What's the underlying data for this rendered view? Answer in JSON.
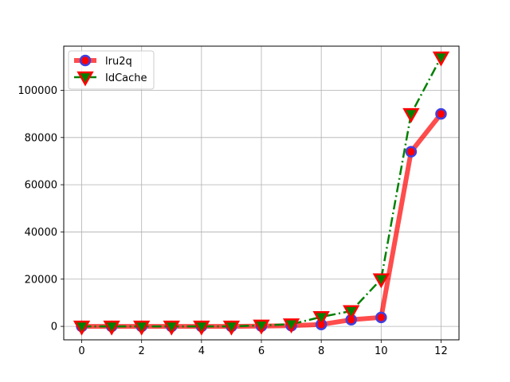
{
  "chart_data": {
    "type": "line",
    "title": "",
    "xlabel": "",
    "ylabel": "",
    "x": [
      0,
      1,
      2,
      3,
      4,
      5,
      6,
      7,
      8,
      9,
      10,
      11,
      12
    ],
    "xlim": [
      -0.6,
      12.6
    ],
    "ylim": [
      -5700,
      118700
    ],
    "xticks": [
      0,
      2,
      4,
      6,
      8,
      10,
      12
    ],
    "yticks": [
      0,
      20000,
      40000,
      60000,
      80000,
      100000
    ],
    "grid": true,
    "legend_position": "top-left",
    "series": [
      {
        "name": "lru2q",
        "values": [
          0,
          0,
          0,
          0,
          0,
          0,
          100,
          300,
          800,
          2800,
          3800,
          74000,
          90000
        ],
        "line_color": "#ff0000",
        "line_opacity": 0.7,
        "line_style": "solid",
        "marker": "circle",
        "marker_face": "#ff0000",
        "marker_edge": "#4040e0"
      },
      {
        "name": "IdCache",
        "values": [
          0,
          0,
          0,
          0,
          0,
          0,
          400,
          900,
          4000,
          6500,
          20000,
          90000,
          114000
        ],
        "line_color": "#008000",
        "line_style": "dashdot",
        "marker": "triangle-down",
        "marker_face": "#008000",
        "marker_edge": "#ff0000"
      }
    ]
  }
}
